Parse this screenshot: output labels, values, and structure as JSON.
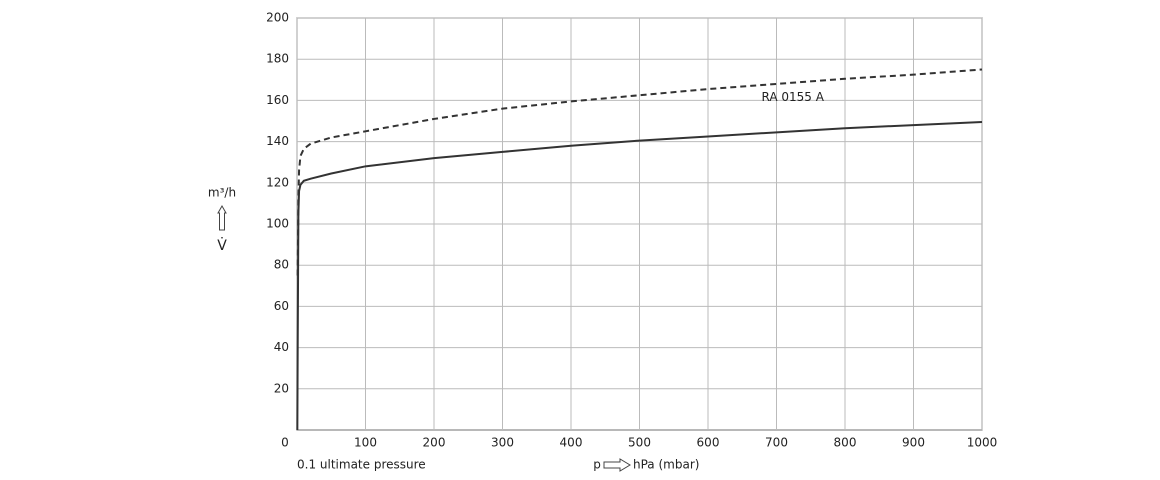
{
  "chart_data": {
    "type": "line",
    "x_label": "hPa (mbar)",
    "x_symbol": "p",
    "y_label": "m³/h",
    "y_symbol": "V̇",
    "annotation": "0.1 ultimate pressure",
    "x": [
      0.5,
      1,
      2,
      3,
      5,
      10,
      20,
      50,
      100,
      200,
      300,
      400,
      500,
      600,
      700,
      800,
      900,
      1000
    ],
    "series": [
      {
        "name": "RA 0155 A",
        "color": "#333333",
        "dash": false,
        "values": [
          0,
          40,
          105,
          116,
          119,
          121,
          122,
          124.5,
          128,
          132,
          135,
          138,
          140.5,
          142.5,
          144.5,
          146.5,
          148,
          149.5
        ]
      },
      {
        "color": "#333333",
        "dash": true,
        "values": [
          null,
          75,
          112,
          126,
          133,
          136.5,
          139,
          142,
          145,
          151,
          156,
          159.5,
          162.5,
          165.5,
          168,
          170.5,
          172.5,
          175
        ]
      }
    ],
    "xlim": [
      0,
      1000
    ],
    "ylim": [
      0,
      200
    ],
    "xticks": [
      0,
      100,
      200,
      300,
      400,
      500,
      600,
      700,
      800,
      900,
      1000
    ],
    "yticks": [
      20,
      40,
      60,
      80,
      100,
      120,
      140,
      160,
      180,
      200
    ],
    "grid": true
  }
}
